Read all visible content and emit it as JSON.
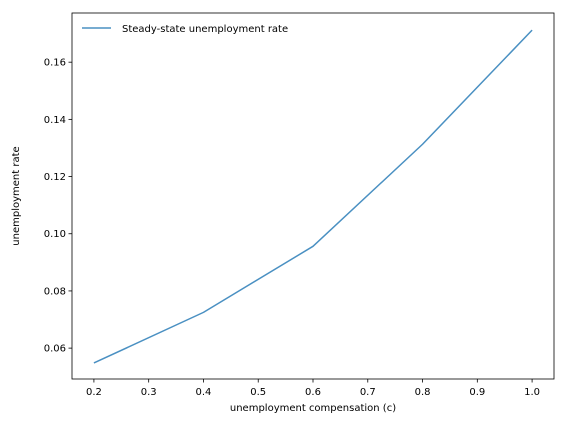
{
  "chart_data": {
    "type": "line",
    "xlabel": "unemployment compensation (c)",
    "ylabel": "unemployment rate",
    "xlim": [
      0.16,
      1.04
    ],
    "ylim": [
      0.0492,
      0.1772
    ],
    "xticks": [
      0.2,
      0.3,
      0.4,
      0.5,
      0.6,
      0.7,
      0.8,
      0.9,
      1.0
    ],
    "xtick_labels": [
      "0.2",
      "0.3",
      "0.4",
      "0.5",
      "0.6",
      "0.7",
      "0.8",
      "0.9",
      "1.0"
    ],
    "yticks": [
      0.06,
      0.08,
      0.1,
      0.12,
      0.14,
      0.16
    ],
    "ytick_labels": [
      "0.06",
      "0.08",
      "0.10",
      "0.12",
      "0.14",
      "0.16"
    ],
    "grid": false,
    "legend_position": "top-left",
    "series": [
      {
        "name": "Steady-state unemployment rate",
        "color": "#4a90c2",
        "x": [
          0.2,
          0.4,
          0.6,
          0.8,
          1.0
        ],
        "y": [
          0.0548,
          0.0725,
          0.0956,
          0.1313,
          0.1712
        ]
      }
    ]
  }
}
